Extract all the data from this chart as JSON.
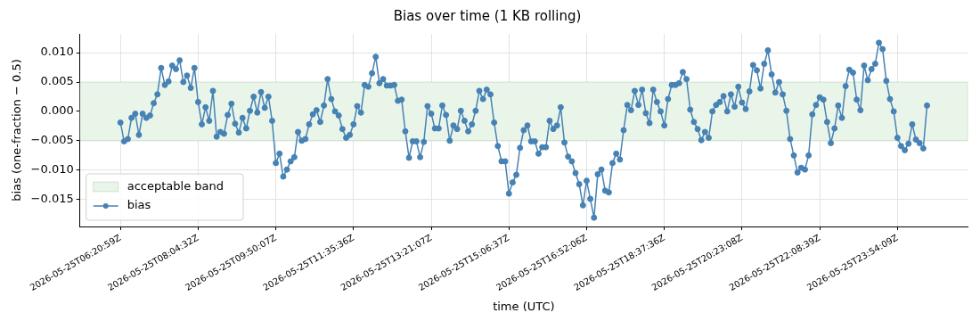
{
  "chart_data": {
    "type": "line",
    "title": "Bias over time (1 KB rolling)",
    "xlabel": "time (UTC)",
    "ylabel": "bias (one-fraction − 0.5)",
    "categories": [
      "2026-05-25T06:20:59Z",
      null,
      null,
      null,
      null,
      null,
      null,
      null,
      null,
      null,
      null,
      null,
      null,
      null,
      null,
      null,
      null,
      null,
      null,
      null,
      null,
      "2026-05-25T08:04:32Z",
      null,
      null,
      null,
      null,
      null,
      null,
      null,
      null,
      null,
      null,
      null,
      null,
      null,
      null,
      null,
      null,
      null,
      null,
      null,
      null,
      "2026-05-25T09:50:07Z",
      null,
      null,
      null,
      null,
      null,
      null,
      null,
      null,
      null,
      null,
      null,
      null,
      null,
      null,
      null,
      null,
      null,
      null,
      null,
      null,
      "2026-05-25T11:35:36Z",
      null,
      null,
      null,
      null,
      null,
      null,
      null,
      null,
      null,
      null,
      null,
      null,
      null,
      null,
      null,
      null,
      null,
      null,
      null,
      null,
      "2026-05-25T13:21:07Z",
      null,
      null,
      null,
      null,
      null,
      null,
      null,
      null,
      null,
      null,
      null,
      null,
      null,
      null,
      null,
      null,
      null,
      null,
      null,
      null,
      "2026-05-25T15:06:37Z",
      null,
      null,
      null,
      null,
      null,
      null,
      null,
      null,
      null,
      null,
      null,
      null,
      null,
      null,
      null,
      null,
      null,
      null,
      null,
      null,
      "2026-05-25T16:52:06Z",
      null,
      null,
      null,
      null,
      null,
      null,
      null,
      null,
      null,
      null,
      null,
      null,
      null,
      null,
      null,
      null,
      null,
      null,
      null,
      null,
      "2026-05-25T18:37:36Z",
      null,
      null,
      null,
      null,
      null,
      null,
      null,
      null,
      null,
      null,
      null,
      null,
      null,
      null,
      null,
      null,
      null,
      null,
      null,
      null,
      "2026-05-25T20:23:08Z",
      null,
      null,
      null,
      null,
      null,
      null,
      null,
      null,
      null,
      null,
      null,
      null,
      null,
      null,
      null,
      null,
      null,
      null,
      null,
      null,
      "2026-05-25T22:08:39Z",
      null,
      null,
      null,
      null,
      null,
      null,
      null,
      null,
      null,
      null,
      null,
      null,
      null,
      null,
      null,
      null,
      null,
      null,
      null,
      null,
      "2026-05-25T23:54:09Z",
      null,
      null,
      null,
      null,
      null,
      null,
      null,
      null
    ],
    "series": [
      {
        "name": "bias",
        "color": "#4682b4",
        "values": [
          -0.0019,
          -0.0051,
          -0.0047,
          -0.0011,
          -0.0004,
          -0.004,
          -0.0004,
          -0.0011,
          -0.0007,
          0.0014,
          0.0029,
          0.0074,
          0.0045,
          0.0051,
          0.0078,
          0.0072,
          0.0087,
          0.005,
          0.0061,
          0.004,
          0.0074,
          0.0016,
          -0.0022,
          0.0007,
          -0.0016,
          0.0035,
          -0.0043,
          -0.0035,
          -0.0038,
          -0.0006,
          0.0013,
          -0.0021,
          -0.0036,
          -0.0011,
          -0.0029,
          0.0001,
          0.0025,
          -0.0002,
          0.0033,
          0.0006,
          0.0025,
          -0.0016,
          -0.0088,
          -0.0072,
          -0.0111,
          -0.0099,
          -0.0085,
          -0.0078,
          -0.0035,
          -0.005,
          -0.0047,
          -0.0022,
          -0.0005,
          0.0002,
          -0.0018,
          0.001,
          0.0055,
          0.0021,
          0.0,
          -0.0007,
          -0.003,
          -0.0045,
          -0.004,
          -0.0022,
          0.0009,
          -0.0002,
          0.0045,
          0.0042,
          0.0065,
          0.0093,
          0.0048,
          0.0055,
          0.0044,
          0.0044,
          0.0045,
          0.0018,
          0.002,
          -0.0034,
          -0.0079,
          -0.0051,
          -0.0051,
          -0.0078,
          -0.0052,
          0.0009,
          -0.0004,
          -0.0029,
          -0.0029,
          0.001,
          -0.0006,
          -0.005,
          -0.0024,
          -0.003,
          0.0001,
          -0.0016,
          -0.0034,
          -0.0022,
          0.0001,
          0.0035,
          0.0021,
          0.0037,
          0.0029,
          -0.0019,
          -0.0059,
          -0.0085,
          -0.0085,
          -0.014,
          -0.0121,
          -0.0108,
          -0.0062,
          -0.0032,
          -0.0024,
          -0.0051,
          -0.0051,
          -0.0072,
          -0.0061,
          -0.0061,
          -0.0016,
          -0.003,
          -0.0024,
          0.0007,
          -0.0053,
          -0.0077,
          -0.0085,
          -0.0105,
          -0.0124,
          -0.016,
          -0.0118,
          -0.0149,
          -0.0181,
          -0.0107,
          -0.0099,
          -0.0135,
          -0.0138,
          -0.0088,
          -0.0072,
          -0.0082,
          -0.0032,
          0.0011,
          0.0002,
          0.0035,
          0.0011,
          0.0037,
          -0.0003,
          -0.002,
          0.0037,
          0.0016,
          0.0,
          -0.0024,
          0.0021,
          0.0045,
          0.0045,
          0.0048,
          0.0067,
          0.0055,
          0.0003,
          -0.0018,
          -0.003,
          -0.0049,
          -0.0035,
          -0.0045,
          0.0,
          0.0011,
          0.0016,
          0.0026,
          0.0,
          0.0029,
          0.0008,
          0.0042,
          0.0015,
          0.0004,
          0.0034,
          0.0079,
          0.007,
          0.0039,
          0.0081,
          0.0104,
          0.0063,
          0.0032,
          0.005,
          0.0029,
          0.0001,
          -0.0047,
          -0.0075,
          -0.0104,
          -0.0096,
          -0.0099,
          -0.0075,
          -0.0005,
          0.0011,
          0.0024,
          0.002,
          -0.0018,
          -0.0054,
          -0.0029,
          0.001,
          -0.0011,
          0.0043,
          0.0071,
          0.0066,
          0.002,
          0.0002,
          0.0078,
          0.0053,
          0.0072,
          0.0081,
          0.0117,
          0.0106,
          0.0052,
          0.0021,
          0.0,
          -0.0045,
          -0.0059,
          -0.0066,
          -0.0055,
          -0.0022,
          -0.0048,
          -0.0054,
          -0.0063,
          0.001
        ]
      }
    ],
    "ylim": [
      -0.0196,
      0.0132
    ],
    "yticks": [
      {
        "value": -0.015,
        "label": "−0.015"
      },
      {
        "value": -0.01,
        "label": "−0.010"
      },
      {
        "value": -0.005,
        "label": "−0.005"
      },
      {
        "value": 0,
        "label": "0.000"
      },
      {
        "value": 0.005,
        "label": "0.005"
      },
      {
        "value": 0.01,
        "label": "0.010"
      }
    ],
    "bands": [
      {
        "axis": "y",
        "from": -0.005,
        "to": 0.005,
        "label": "acceptable band",
        "color": "#eaf5ea"
      }
    ],
    "grid": true,
    "legend": "bottom left",
    "marker": "circle",
    "line_style": "solid"
  }
}
